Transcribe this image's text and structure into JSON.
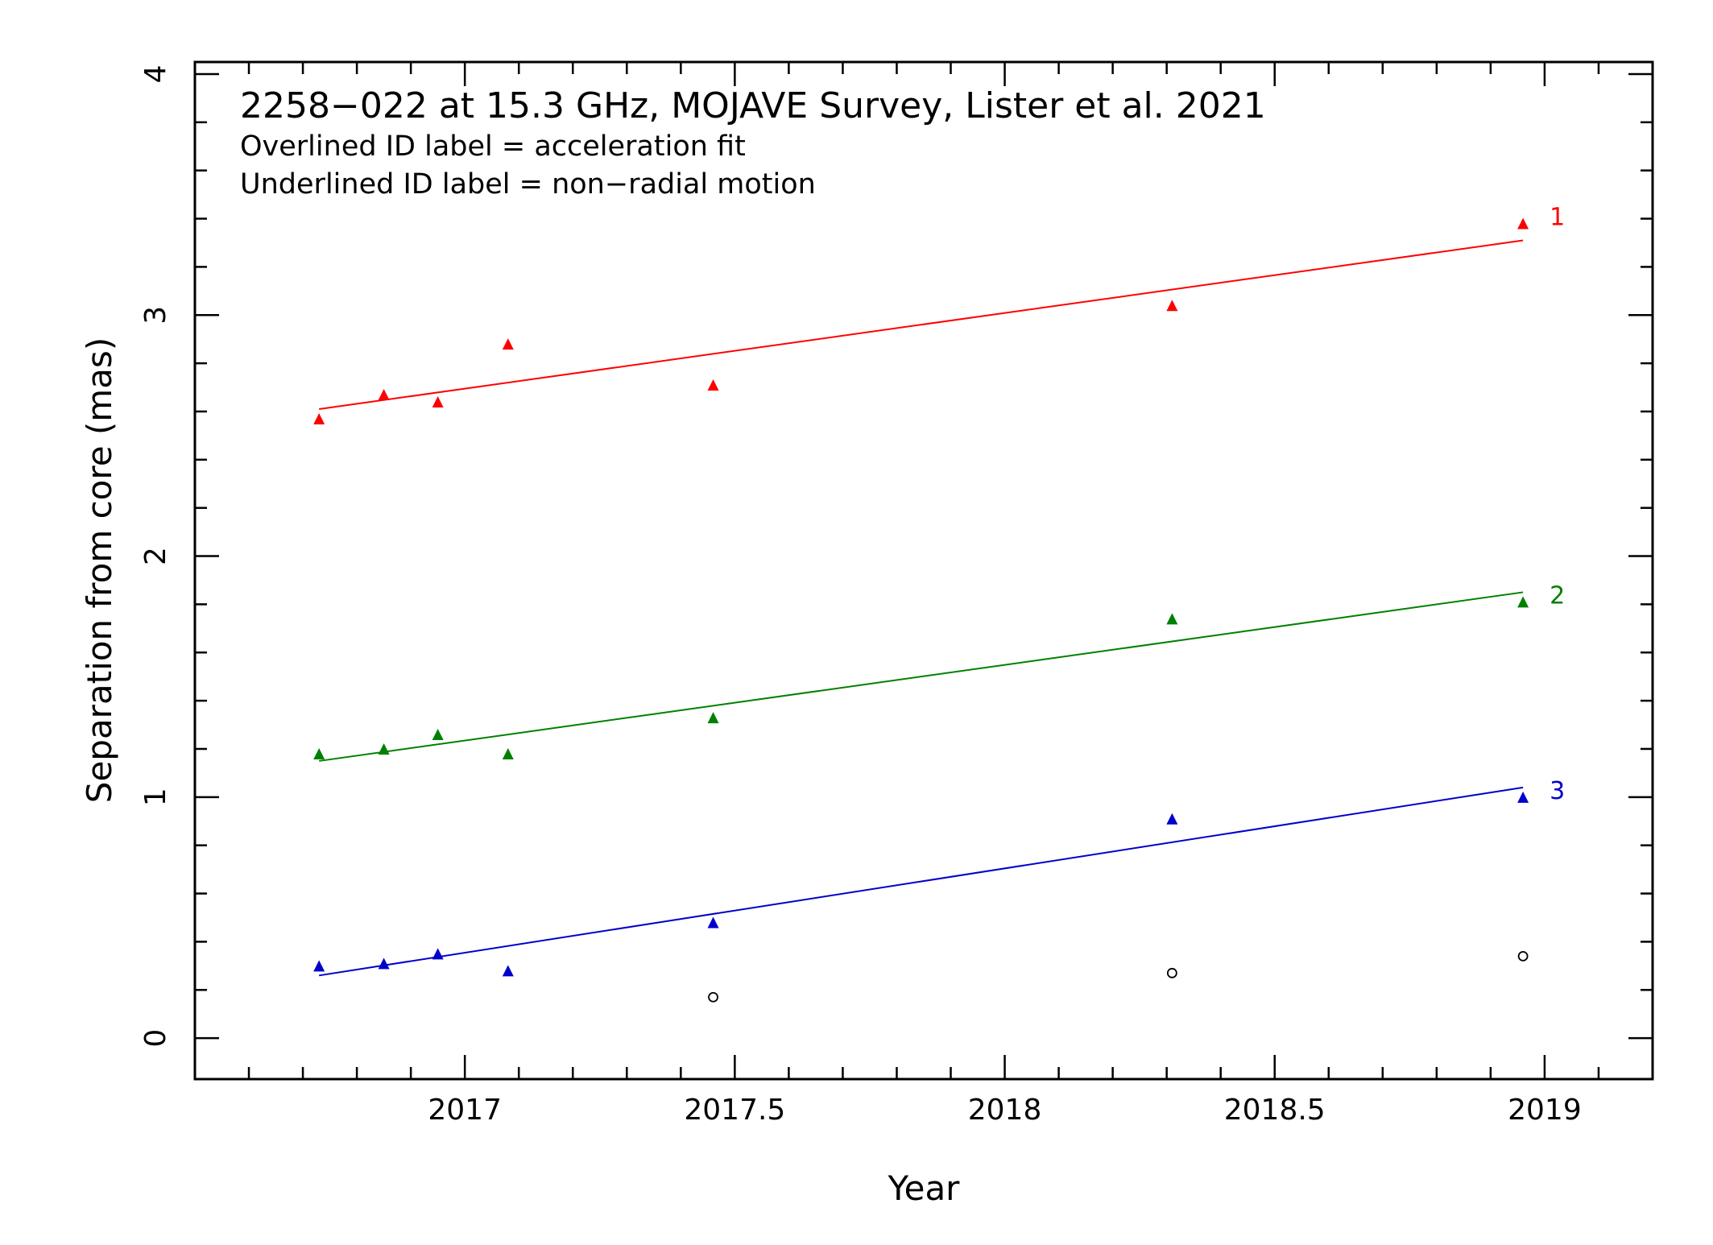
{
  "chart_data": {
    "type": "scatter",
    "title": "2258−022 at 15.3 GHz, MOJAVE Survey, Lister et al. 2021",
    "notes": [
      "Overlined ID label = acceleration fit",
      "Underlined ID label = non−radial motion"
    ],
    "xlabel": "Year",
    "ylabel": "Separation from core (mas)",
    "xlim": [
      2016.5,
      2019.2
    ],
    "ylim": [
      -0.17,
      4.05
    ],
    "xticks": [
      2017,
      2017.5,
      2018,
      2018.5,
      2019
    ],
    "xtick_labels": [
      "2017",
      "2017.5",
      "2018",
      "2018.5",
      "2019"
    ],
    "yticks": [
      0,
      1,
      2,
      3,
      4
    ],
    "ytick_labels": [
      "0",
      "1",
      "2",
      "3",
      "4"
    ],
    "grid": false,
    "series": [
      {
        "name": "1",
        "color": "#ff0000",
        "marker": "triangle",
        "points": [
          [
            2016.73,
            2.57
          ],
          [
            2016.85,
            2.67
          ],
          [
            2016.95,
            2.64
          ],
          [
            2017.08,
            2.88
          ],
          [
            2017.46,
            2.71
          ],
          [
            2018.31,
            3.04
          ],
          [
            2018.96,
            3.38
          ]
        ],
        "fit": [
          [
            2016.73,
            2.61
          ],
          [
            2018.96,
            3.31
          ]
        ]
      },
      {
        "name": "2",
        "color": "#008000",
        "marker": "triangle",
        "points": [
          [
            2016.73,
            1.18
          ],
          [
            2016.85,
            1.2
          ],
          [
            2016.95,
            1.26
          ],
          [
            2017.08,
            1.18
          ],
          [
            2017.46,
            1.33
          ],
          [
            2018.31,
            1.74
          ],
          [
            2018.96,
            1.81
          ]
        ],
        "fit": [
          [
            2016.73,
            1.15
          ],
          [
            2018.96,
            1.85
          ]
        ]
      },
      {
        "name": "3",
        "color": "#0000cc",
        "marker": "triangle",
        "points": [
          [
            2016.73,
            0.3
          ],
          [
            2016.85,
            0.31
          ],
          [
            2016.95,
            0.35
          ],
          [
            2017.08,
            0.28
          ],
          [
            2017.46,
            0.48
          ],
          [
            2018.31,
            0.91
          ],
          [
            2018.96,
            1.0
          ]
        ],
        "fit": [
          [
            2016.73,
            0.26
          ],
          [
            2018.96,
            1.04
          ]
        ]
      },
      {
        "name": "",
        "color": "#000000",
        "marker": "open-circle",
        "points": [
          [
            2017.46,
            0.17
          ],
          [
            2018.31,
            0.27
          ],
          [
            2018.96,
            0.34
          ]
        ]
      }
    ]
  }
}
